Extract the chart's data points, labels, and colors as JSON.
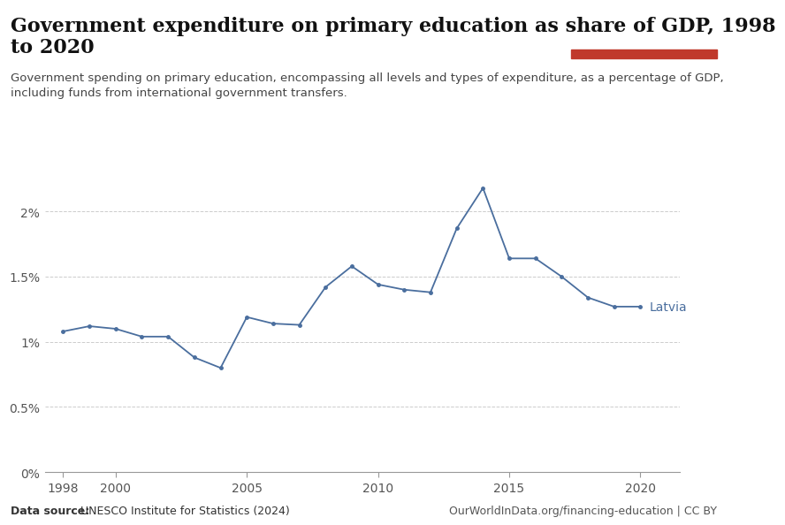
{
  "title_line1": "Government expenditure on primary education as share of GDP, 1998",
  "title_line2": "to 2020",
  "subtitle": "Government spending on primary education, encompassing all levels and types of expenditure, as a percentage of GDP,\nincluding funds from international government transfers.",
  "source_left_bold": "Data source:",
  "source_left_normal": " UNESCO Institute for Statistics (2024)",
  "source_right": "OurWorldInData.org/financing-education | CC BY",
  "line_color": "#4a6e9e",
  "label": "Latvia",
  "years": [
    1998,
    1999,
    2000,
    2001,
    2002,
    2003,
    2004,
    2005,
    2006,
    2007,
    2008,
    2009,
    2010,
    2011,
    2012,
    2013,
    2014,
    2015,
    2016,
    2017,
    2018,
    2019,
    2020
  ],
  "values": [
    1.08,
    1.12,
    1.1,
    1.04,
    1.04,
    0.88,
    0.8,
    1.19,
    1.14,
    1.13,
    1.42,
    1.58,
    1.44,
    1.4,
    1.38,
    1.87,
    2.18,
    1.64,
    1.64,
    1.5,
    1.34,
    1.27,
    1.27
  ],
  "ytick_vals": [
    0,
    0.5,
    1.0,
    1.5,
    2.0
  ],
  "ytick_labels": [
    "0%",
    "0.5%",
    "1%",
    "1.5%",
    "2%"
  ],
  "xtick_vals": [
    1998,
    2000,
    2005,
    2010,
    2015,
    2020
  ],
  "xtick_labels": [
    "1998",
    "2000",
    "2005",
    "2010",
    "2015",
    "2020"
  ],
  "xlim": [
    1997.3,
    2021.5
  ],
  "ylim": [
    0,
    2.36
  ],
  "background_color": "#ffffff",
  "grid_color": "#cccccc",
  "logo_bg": "#143354",
  "logo_red": "#c0392b",
  "title_fontsize": 16,
  "subtitle_fontsize": 9.5,
  "axis_fontsize": 10,
  "source_fontsize": 9,
  "label_fontsize": 10
}
